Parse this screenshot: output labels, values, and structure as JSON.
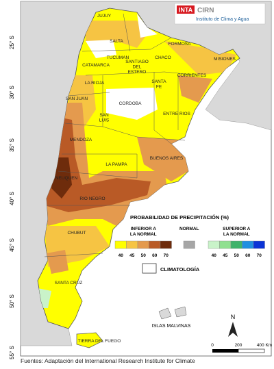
{
  "logo": {
    "brand": "INTA",
    "org": "CIRN",
    "institute": "Instituto de Clima y Agua"
  },
  "latitude_labels": [
    "25° S",
    "30° S",
    "35° S",
    "40° S",
    "45° S",
    "50° S",
    "55° S"
  ],
  "provinces": [
    [
      "JUJUY"
    ],
    [
      "SALTA"
    ],
    [
      "FORMOSA"
    ],
    [
      "TUCUMAN"
    ],
    [
      "CHACO"
    ],
    [
      "MISIONES"
    ],
    [
      "CATAMARCA"
    ],
    [
      "SANTIAGO",
      "DEL",
      "ESTERO"
    ],
    [
      "CORRIENTES"
    ],
    [
      "LA RIOJA"
    ],
    [
      "SANTA",
      "FE"
    ],
    [
      "SAN JUAN"
    ],
    [
      "CORDOBA"
    ],
    [
      "ENTRE RIOS"
    ],
    [
      "SAN",
      "LUIS"
    ],
    [
      "MENDOZA"
    ],
    [
      "BUENOS AIRES"
    ],
    [
      "LA PAMPA"
    ],
    [
      "NEUQUEN"
    ],
    [
      "RIO NEGRO"
    ],
    [
      "CHUBUT"
    ],
    [
      "SANTA CRUZ"
    ],
    [
      "TIERRA DEL FUEGO"
    ]
  ],
  "legend": {
    "title": "PROBABILIDAD DE PRECIPITACIÓN (%)",
    "groups": [
      {
        "label": [
          "INFERIOR A",
          "LA NORMAL"
        ],
        "levels": [
          40,
          45,
          50,
          60,
          70
        ],
        "colors": [
          "#ffff00",
          "#f6c443",
          "#e49a4e",
          "#b95a26",
          "#6e2c0c"
        ]
      },
      {
        "label": [
          "NORMAL"
        ],
        "levels": [],
        "colors": [
          "#a6a6a6"
        ]
      },
      {
        "label": [
          "SUPERIOR A",
          "LA NORMAL"
        ],
        "levels": [
          40,
          45,
          50,
          60,
          70
        ],
        "colors": [
          "#c9f3c9",
          "#90e090",
          "#3fb36a",
          "#1f8fe0",
          "#0a33d6"
        ]
      }
    ],
    "climatology": "CLIMATOLOGÍA"
  },
  "islands": "ISLAS MALVINAS",
  "north": "N",
  "scale_labels": [
    "0",
    "200",
    "400 Km"
  ],
  "source": "Fuentes: Adaptación del International Research Institute for Climate"
}
